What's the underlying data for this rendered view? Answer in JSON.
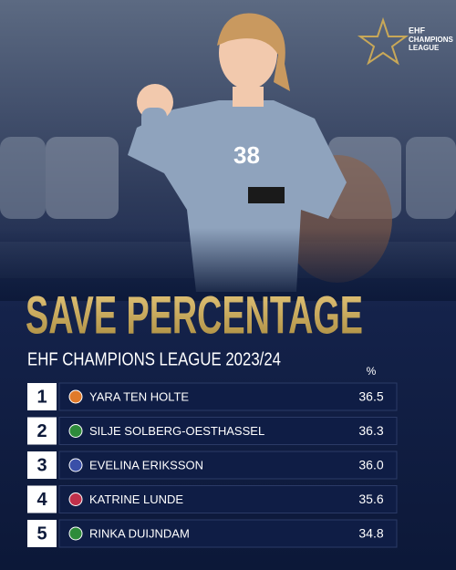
{
  "logo": {
    "brand": "EHF",
    "name": [
      "CHAMPIONS",
      "LEAGUE"
    ]
  },
  "title": "SAVE PERCENTAGE",
  "subtitle": "EHF CHAMPIONS LEAGUE 2023/24",
  "table": {
    "header": "%",
    "rows": [
      {
        "rank": 1,
        "name": "YARA TEN HOLTE",
        "value": "36.5"
      },
      {
        "rank": 2,
        "name": "SILJE SOLBERG-OESTHASSEL",
        "value": "36.3"
      },
      {
        "rank": 3,
        "name": "EVELINA ERIKSSON",
        "value": "36.0"
      },
      {
        "rank": 4,
        "name": "KATRINE LUNDE",
        "value": "35.6"
      },
      {
        "rank": 5,
        "name": "RINKA DUIJNDAM",
        "value": "34.8"
      }
    ]
  }
}
